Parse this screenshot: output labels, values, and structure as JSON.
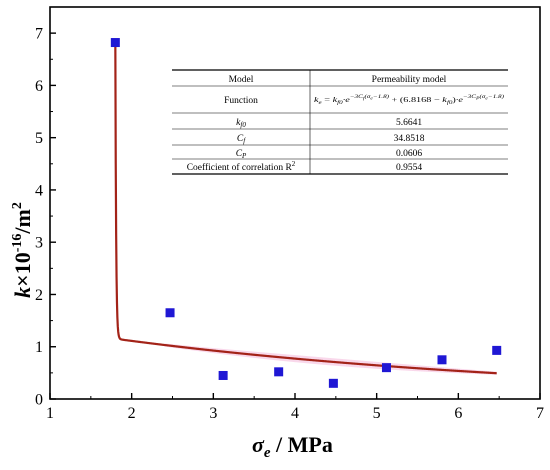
{
  "chart_data": {
    "type": "scatter",
    "xlabel": {
      "symbol": "σ",
      "subscript": "e",
      "unit": " / MPa"
    },
    "ylabel": {
      "symbol": "k",
      "rest": "×10",
      "superscript": "-16",
      "unit": "/m",
      "unit_sup": "2"
    },
    "xlim": [
      1,
      7
    ],
    "ylim": [
      0,
      7.5
    ],
    "x_ticks": [
      1,
      2,
      3,
      4,
      5,
      6,
      7
    ],
    "y_ticks": [
      0,
      1,
      2,
      3,
      4,
      5,
      6,
      7
    ],
    "grid": false,
    "points": {
      "x": [
        1.8,
        2.47,
        3.12,
        3.8,
        4.47,
        5.12,
        5.8,
        6.47
      ],
      "y": [
        6.82,
        1.65,
        0.45,
        0.52,
        0.3,
        0.6,
        0.75,
        0.93
      ],
      "color": "#1f17d4"
    },
    "fit": {
      "color": "#a32318",
      "band_color": "#f6c8e2",
      "params": {
        "kf0": 5.6641,
        "Cf": 34.8518,
        "Cp": 0.0606,
        "sigma0": 1.8,
        "k_total": 6.8168
      }
    },
    "table": {
      "header": [
        "Model",
        "Permeability model"
      ],
      "function_label": "Function",
      "formula": {
        "lhs": "k",
        "lhs_sub": "e",
        "eq": " = ",
        "kf0": "k",
        "kf0_sub": "f0",
        "e": "·e",
        "exp1": "−3C",
        "exp1_sub": "f",
        "exp_arg": "(σ",
        "exp_arg_sub": "e",
        "exp_arg_end": "−1.8)",
        "plus": " + (6.8168 − ",
        "close": ")",
        "exp2": "−3C",
        "exp2_sub": "P"
      },
      "rows": [
        {
          "label": "k",
          "label_sub": "f0",
          "value": "5.6641"
        },
        {
          "label": "C",
          "label_sub": "f",
          "value": "34.8518"
        },
        {
          "label": "C",
          "label_sub": "P",
          "value": "0.0606"
        },
        {
          "label": "Coefficient of correlation R",
          "label_sup": "2",
          "value": "0.9554"
        }
      ]
    }
  }
}
